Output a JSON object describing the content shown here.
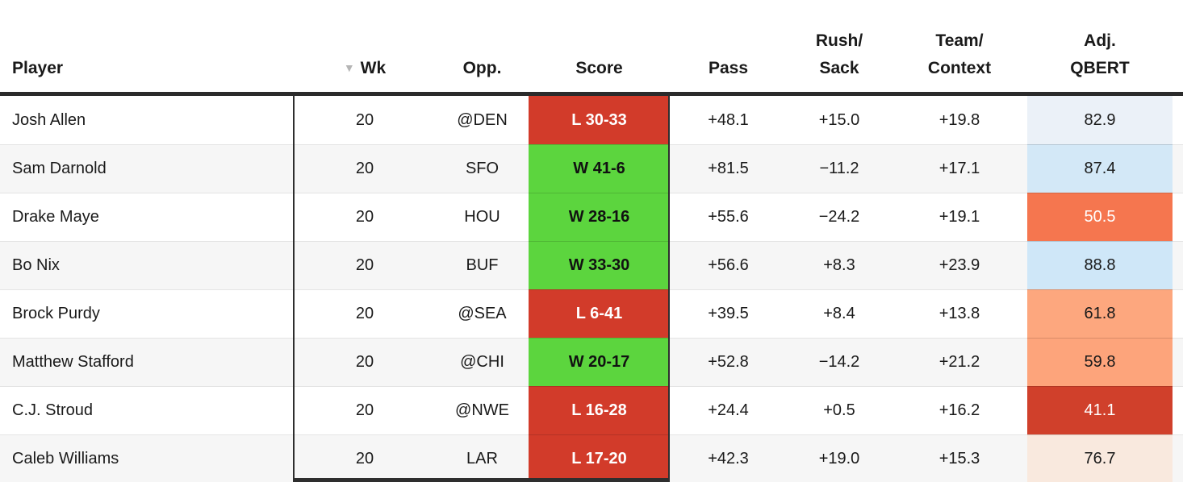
{
  "table": {
    "sort_icon": "▼",
    "columns": [
      {
        "key": "player",
        "line1": "",
        "line2": "Player",
        "align": "left"
      },
      {
        "key": "wk",
        "line1": "",
        "line2": "Wk",
        "sort": true
      },
      {
        "key": "opp",
        "line1": "",
        "line2": "Opp."
      },
      {
        "key": "score",
        "line1": "",
        "line2": "Score"
      },
      {
        "key": "pass",
        "line1": "",
        "line2": "Pass"
      },
      {
        "key": "rush_sack",
        "line1": "Rush/",
        "line2": "Sack"
      },
      {
        "key": "team_context",
        "line1": "Team/",
        "line2": "Context"
      },
      {
        "key": "qbert",
        "line1": "Adj.",
        "line2": "QBERT",
        "pad_right": true
      }
    ],
    "colors": {
      "win_bg": "#5cd53e",
      "win_fg": "#111111",
      "loss_bg": "#d23b2a",
      "loss_fg": "#ffffff",
      "header_border": "#2b2b2b",
      "row_alt_bg": "#f6f6f6"
    },
    "rows": [
      {
        "player": "Josh Allen",
        "wk": "20",
        "opp": "@DEN",
        "score": "L 30-33",
        "result": "loss",
        "pass": "+48.1",
        "rush_sack": "+15.0",
        "team_context": "+19.8",
        "qbert": "82.9",
        "qbert_bg": "#ebf1f8",
        "qbert_fg": "#1a1a1a"
      },
      {
        "player": "Sam Darnold",
        "wk": "20",
        "opp": "SFO",
        "score": "W 41-6",
        "result": "win",
        "pass": "+81.5",
        "rush_sack": "−11.2",
        "team_context": "+17.1",
        "qbert": "87.4",
        "qbert_bg": "#d3e8f7",
        "qbert_fg": "#1a1a1a"
      },
      {
        "player": "Drake Maye",
        "wk": "20",
        "opp": "HOU",
        "score": "W 28-16",
        "result": "win",
        "pass": "+55.6",
        "rush_sack": "−24.2",
        "team_context": "+19.1",
        "qbert": "50.5",
        "qbert_bg": "#f5764f",
        "qbert_fg": "#ffffff"
      },
      {
        "player": "Bo Nix",
        "wk": "20",
        "opp": "BUF",
        "score": "W 33-30",
        "result": "win",
        "pass": "+56.6",
        "rush_sack": "+8.3",
        "team_context": "+23.9",
        "qbert": "88.8",
        "qbert_bg": "#cfe7f8",
        "qbert_fg": "#1a1a1a"
      },
      {
        "player": "Brock Purdy",
        "wk": "20",
        "opp": "@SEA",
        "score": "L 6-41",
        "result": "loss",
        "pass": "+39.5",
        "rush_sack": "+8.4",
        "team_context": "+13.8",
        "qbert": "61.8",
        "qbert_bg": "#fda77e",
        "qbert_fg": "#1a1a1a"
      },
      {
        "player": "Matthew Stafford",
        "wk": "20",
        "opp": "@CHI",
        "score": "W 20-17",
        "result": "win",
        "pass": "+52.8",
        "rush_sack": "−14.2",
        "team_context": "+21.2",
        "qbert": "59.8",
        "qbert_bg": "#fda47b",
        "qbert_fg": "#1a1a1a"
      },
      {
        "player": "C.J. Stroud",
        "wk": "20",
        "opp": "@NWE",
        "score": "L 16-28",
        "result": "loss",
        "pass": "+24.4",
        "rush_sack": "+0.5",
        "team_context": "+16.2",
        "qbert": "41.1",
        "qbert_bg": "#d0402b",
        "qbert_fg": "#ffffff"
      },
      {
        "player": "Caleb Williams",
        "wk": "20",
        "opp": "LAR",
        "score": "L 17-20",
        "result": "loss",
        "pass": "+42.3",
        "rush_sack": "+19.0",
        "team_context": "+15.3",
        "qbert": "76.7",
        "qbert_bg": "#f9e9de",
        "qbert_fg": "#1a1a1a"
      }
    ]
  }
}
